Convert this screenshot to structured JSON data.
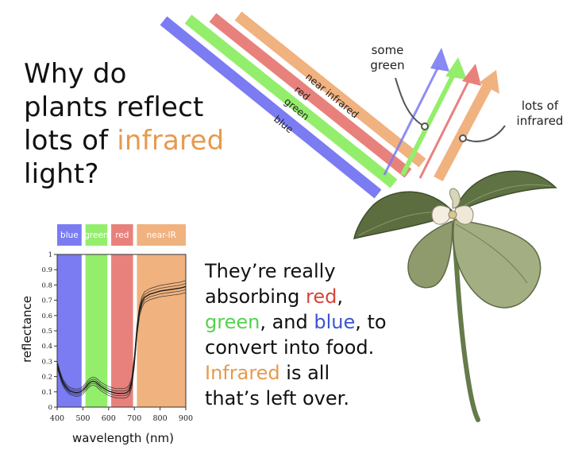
{
  "title": {
    "line1": "Why do",
    "line2": "plants reflect",
    "line3_pre": "lots of ",
    "line3_highlight": "infrared",
    "line4": "light?"
  },
  "beams": {
    "blue": "blue",
    "green": "green",
    "red": "red",
    "near_infrared": "near infrared"
  },
  "callouts": {
    "some_green": "some green",
    "lots_of_infrared": "lots of infrared"
  },
  "explanation": {
    "line1": "They’re really",
    "line2_pre": "absorbing ",
    "red": "red",
    "line2_post": ",",
    "green": "green",
    "line3_mid": ", and ",
    "blue": "blue",
    "line3_post": ", to",
    "line4": "convert into food.",
    "infrared": "Infrared",
    "line5_post": " is all",
    "line6": "that’s left over."
  },
  "colors": {
    "blue": "#7b7cf2",
    "green": "#93ee6c",
    "red": "#e8817c",
    "orange": "#f0b27f",
    "text_red": "#d4463a",
    "text_green": "#55d24f",
    "text_blue": "#3b53d6",
    "text_orange": "#e69a4d"
  },
  "chart_data": {
    "type": "line",
    "xlabel": "wavelength (nm)",
    "ylabel": "reflectance",
    "xlim": [
      400,
      900
    ],
    "ylim": [
      0,
      1
    ],
    "x_ticks": [
      "400",
      "500",
      "600",
      "700",
      "800",
      "900"
    ],
    "y_ticks": [
      "0",
      "0.1",
      "0.2",
      "0.3",
      "0.4",
      "0.5",
      "0.6",
      "0.7",
      "0.8",
      "0.9",
      "1"
    ],
    "bands": [
      {
        "label": "blue",
        "from": 400,
        "to": 495,
        "color": "#7b7cf2"
      },
      {
        "label": "green",
        "from": 510,
        "to": 595,
        "color": "#93ee6c"
      },
      {
        "label": "red",
        "from": 610,
        "to": 695,
        "color": "#e8817c"
      },
      {
        "label": "near-IR",
        "from": 710,
        "to": 900,
        "color": "#f0b27f"
      }
    ],
    "series": [
      {
        "x": [
          400,
          410,
          420,
          430,
          440,
          450,
          460,
          470,
          480,
          490,
          500,
          510,
          520,
          530,
          540,
          550,
          560,
          570,
          580,
          590,
          600,
          610,
          620,
          630,
          640,
          650,
          660,
          670,
          680,
          690,
          700,
          710,
          720,
          730,
          740,
          750,
          760,
          780,
          800,
          820,
          840,
          860,
          880,
          900
        ],
        "y": [
          0.28,
          0.22,
          0.17,
          0.14,
          0.12,
          0.105,
          0.1,
          0.095,
          0.095,
          0.1,
          0.11,
          0.13,
          0.15,
          0.165,
          0.17,
          0.165,
          0.15,
          0.135,
          0.125,
          0.115,
          0.105,
          0.1,
          0.095,
          0.09,
          0.09,
          0.09,
          0.09,
          0.095,
          0.11,
          0.16,
          0.3,
          0.5,
          0.63,
          0.69,
          0.72,
          0.73,
          0.74,
          0.75,
          0.76,
          0.765,
          0.77,
          0.775,
          0.78,
          0.79
        ]
      }
    ]
  }
}
